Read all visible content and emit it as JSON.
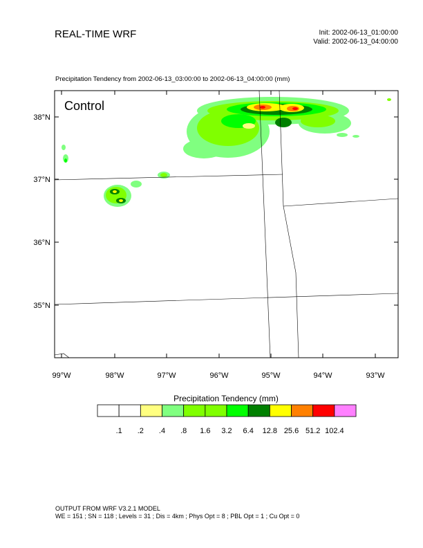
{
  "header": {
    "title": "REAL-TIME WRF",
    "init": "Init: 2002-06-13_01:00:00",
    "valid": "Valid: 2002-06-13_04:00:00"
  },
  "plot": {
    "subtitle": "Precipitation Tendency from 2002-06-13_03:00:00 to 2002-06-13_04:00:00   (mm)",
    "panel_label": "Control",
    "lat_labels": [
      "38°N",
      "37°N",
      "36°N",
      "35°N"
    ],
    "lon_labels": [
      "99°W",
      "98°W",
      "97°W",
      "96°W",
      "95°W",
      "94°W",
      "93°W"
    ]
  },
  "legend": {
    "title": "Precipitation Tendency  (mm)",
    "colors": [
      "#ffffff",
      "#ffffff",
      "#ffff80",
      "#80ff80",
      "#80ff00",
      "#80ff00",
      "#00ff00",
      "#008000",
      "#ffff00",
      "#ff8000",
      "#ff0000",
      "#ff80ff"
    ],
    "labels": [
      ".1",
      ".2",
      ".4",
      ".8",
      "1.6",
      "3.2",
      "6.4",
      "12.8",
      "25.6",
      "51.2",
      "102.4"
    ]
  },
  "footer": {
    "line1": "OUTPUT FROM WRF V3.2.1 MODEL",
    "line2": "WE = 151 ; SN = 118 ; Levels = 31 ; Dis = 4km ; Phys Opt = 8 ; PBL Opt = 1 ; Cu Opt = 0"
  }
}
